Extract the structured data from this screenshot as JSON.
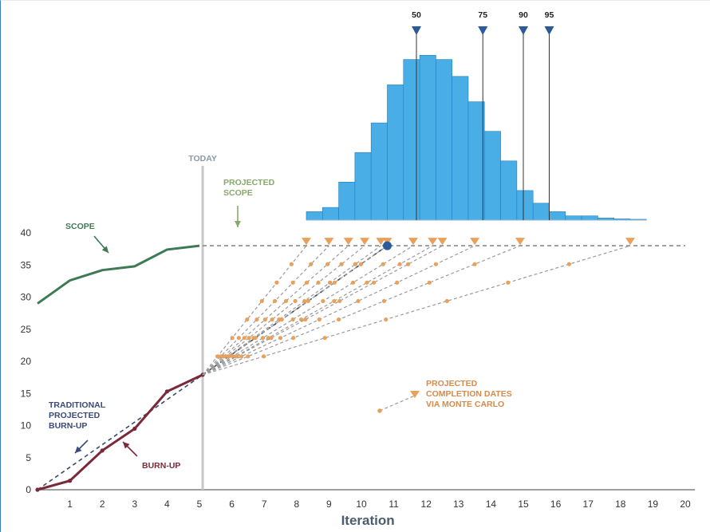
{
  "chart_data": {
    "type": "line",
    "xlabel": "Iteration",
    "ylabel": "",
    "xlim": [
      0,
      20
    ],
    "ylim": [
      0,
      40
    ],
    "x_ticks": [
      1,
      2,
      3,
      4,
      5,
      6,
      7,
      8,
      9,
      10,
      11,
      12,
      13,
      14,
      15,
      16,
      17,
      18,
      19,
      20
    ],
    "y_ticks": [
      0,
      5,
      10,
      15,
      20,
      25,
      30,
      35,
      40
    ],
    "grid": false,
    "today_x": 5.1,
    "today_label": "TODAY",
    "projected_scope_value": 38,
    "series": [
      {
        "name": "SCOPE",
        "color": "#3d7a55",
        "x": [
          0,
          1,
          2,
          3,
          4,
          5
        ],
        "y": [
          29,
          32.6,
          34.2,
          34.8,
          37.4,
          38
        ]
      },
      {
        "name": "BURN-UP",
        "color": "#7a2a3a",
        "x": [
          0,
          1,
          2,
          3,
          4,
          5.1
        ],
        "y": [
          0,
          1.4,
          6.1,
          9.5,
          15.3,
          17.9
        ]
      },
      {
        "name": "TRADITIONAL PROJECTED BURN-UP",
        "color": "#3a4a66",
        "x": [
          0,
          5.1,
          10.8
        ],
        "y": [
          0,
          17.9,
          38
        ]
      }
    ],
    "monte_carlo": {
      "name": "PROJECTED COMPLETION DATES VIA MONTE CARLO",
      "color": "#e8a05a",
      "start": [
        5.1,
        17.9
      ],
      "end_y": 38,
      "completion_iterations": [
        8.3,
        9.0,
        9.6,
        10.1,
        10.6,
        10.8,
        11.6,
        12.2,
        12.5,
        13.5,
        14.9,
        18.3
      ],
      "traditional_completion": 10.8
    },
    "histogram": {
      "start_x": 8.3,
      "bin_width": 0.5,
      "counts": [
        2,
        3,
        9,
        16,
        23,
        32,
        38,
        39,
        38,
        34,
        28,
        21,
        14,
        7,
        4,
        2,
        1,
        1,
        0.5,
        0.3,
        0.2
      ],
      "color": "#49aee6",
      "percentiles": [
        {
          "label": "50",
          "x": 11.7
        },
        {
          "label": "75",
          "x": 13.75
        },
        {
          "label": "90",
          "x": 15.0
        },
        {
          "label": "95",
          "x": 15.8
        }
      ]
    },
    "annotations": {
      "scope": "SCOPE",
      "projected_scope": [
        "PROJECTED",
        "SCOPE"
      ],
      "traditional": [
        "TRADITIONAL",
        "PROJECTED",
        "BURN-UP"
      ],
      "burnup": "BURN-UP",
      "monte_carlo": [
        "PROJECTED",
        "COMPLETION DATES",
        "VIA MONTE CARLO"
      ]
    }
  }
}
